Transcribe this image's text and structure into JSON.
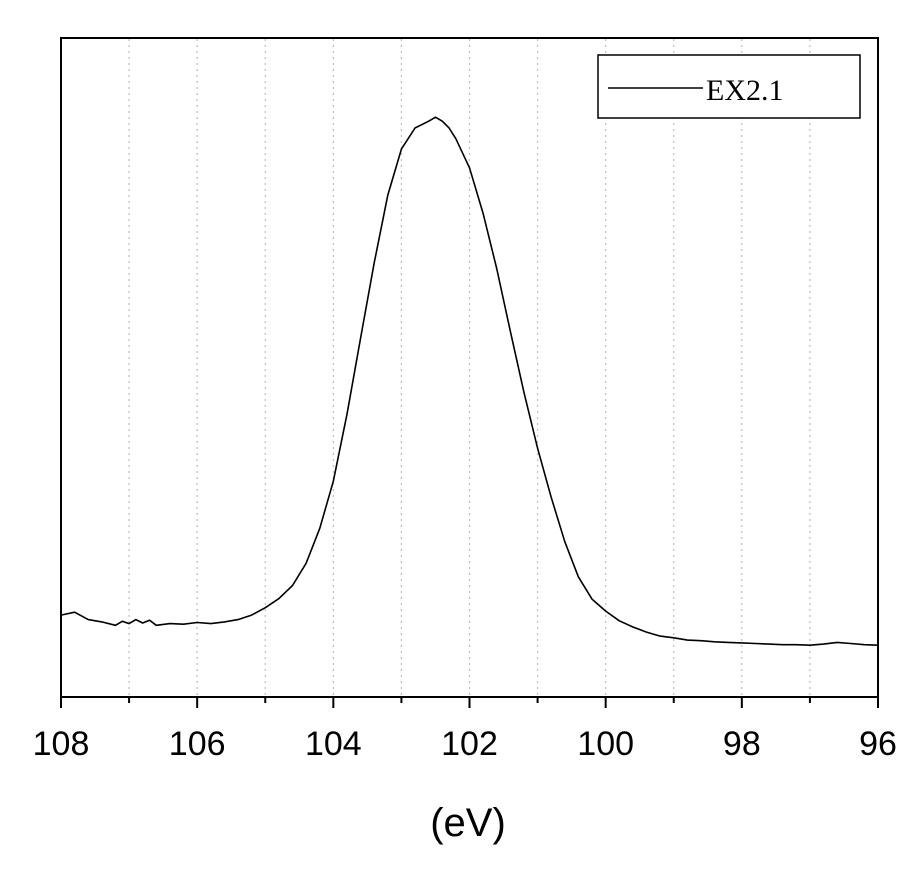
{
  "chart_data": {
    "type": "line",
    "xlabel": "(eV)",
    "ylabel": "",
    "xlim": [
      108,
      96
    ],
    "x_reversed": true,
    "x_ticks": [
      108,
      106,
      104,
      102,
      100,
      98,
      96
    ],
    "x_minor_ticks": [
      107,
      105,
      103,
      101,
      99,
      97
    ],
    "y_ticks_shown": false,
    "grid": "vertical-dotted",
    "legend_position": "top-right",
    "colors": {
      "line": "#000000",
      "grid": "#bfbfbf",
      "axis": "#000000"
    },
    "y_units": "arbitrary",
    "ylim": [
      0,
      100
    ],
    "series": [
      {
        "name": "EX2.1",
        "x": [
          108.0,
          107.8,
          107.6,
          107.4,
          107.2,
          107.1,
          107.0,
          106.9,
          106.8,
          106.7,
          106.6,
          106.4,
          106.2,
          106.0,
          105.8,
          105.6,
          105.4,
          105.2,
          105.0,
          104.8,
          104.6,
          104.4,
          104.2,
          104.0,
          103.8,
          103.6,
          103.4,
          103.2,
          103.0,
          102.8,
          102.6,
          102.5,
          102.4,
          102.3,
          102.2,
          102.0,
          101.8,
          101.6,
          101.4,
          101.2,
          101.0,
          100.8,
          100.6,
          100.4,
          100.2,
          100.0,
          99.8,
          99.6,
          99.4,
          99.2,
          99.0,
          98.8,
          98.6,
          98.4,
          98.2,
          98.0,
          97.8,
          97.6,
          97.4,
          97.2,
          97.0,
          96.8,
          96.6,
          96.4,
          96.2,
          96.0
        ],
        "values": [
          14.4,
          14.9,
          13.6,
          13.2,
          12.6,
          13.3,
          12.9,
          13.6,
          13.0,
          13.5,
          12.6,
          12.9,
          12.8,
          13.1,
          12.9,
          13.2,
          13.6,
          14.4,
          15.7,
          17.3,
          19.6,
          23.5,
          29.6,
          37.9,
          49.7,
          63.1,
          76.3,
          88.2,
          96.3,
          100.0,
          101.2,
          101.9,
          101.2,
          100.0,
          98.1,
          93.0,
          85.0,
          75.3,
          64.3,
          53.5,
          43.7,
          35.1,
          27.3,
          21.1,
          17.2,
          15.1,
          13.4,
          12.3,
          11.4,
          10.7,
          10.4,
          10.0,
          9.9,
          9.7,
          9.6,
          9.5,
          9.4,
          9.3,
          9.2,
          9.2,
          9.1,
          9.3,
          9.6,
          9.4,
          9.2,
          9.1
        ]
      }
    ]
  }
}
